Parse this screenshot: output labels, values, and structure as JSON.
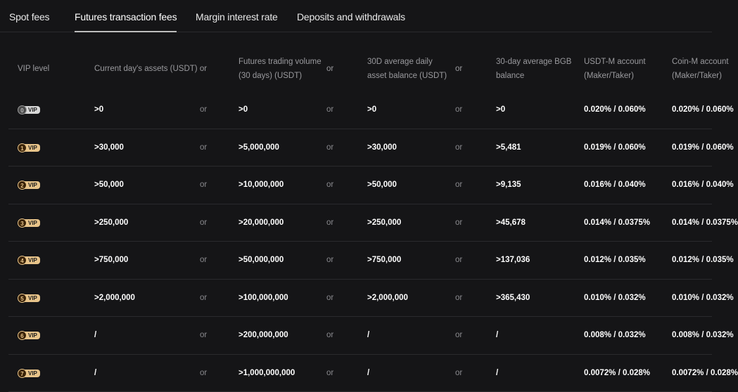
{
  "tabs": [
    {
      "label": "Spot fees"
    },
    {
      "label": "Futures transaction fees",
      "active": true
    },
    {
      "label": "Margin interest rate"
    },
    {
      "label": "Deposits and withdrawals"
    }
  ],
  "headers": {
    "vip": "VIP level",
    "assets": "Current day's assets (USDT) or",
    "volume1": "Futures trading volume",
    "volume2": "(30 days) (USDT)",
    "or": "or",
    "balance1": "30D average daily",
    "balance2": "asset balance (USDT)",
    "bgb1": "30-day average BGB",
    "bgb2": "balance",
    "usdtm1": "USDT-M account",
    "usdtm2": "(Maker/Taker)",
    "coinm1": "Coin-M account",
    "coinm2": "(Maker/Taker)"
  },
  "colors": {
    "vip0": "#8a8a8a",
    "vipGold": "#e8c48a",
    "background": "#151517"
  },
  "rows": [
    {
      "level": "0",
      "vip": "VIP",
      "assets": ">0",
      "or": "or",
      "volume": ">0",
      "balance": ">0",
      "bgb": ">0",
      "usdtm": "0.020% / 0.060%",
      "coinm": "0.020% / 0.060%"
    },
    {
      "level": "1",
      "vip": "VIP",
      "assets": ">30,000",
      "or": "or",
      "volume": ">5,000,000",
      "balance": ">30,000",
      "bgb": ">5,481",
      "usdtm": "0.019% / 0.060%",
      "coinm": "0.019% / 0.060%"
    },
    {
      "level": "2",
      "vip": "VIP",
      "assets": ">50,000",
      "or": "or",
      "volume": ">10,000,000",
      "balance": ">50,000",
      "bgb": ">9,135",
      "usdtm": "0.016% / 0.040%",
      "coinm": "0.016% / 0.040%"
    },
    {
      "level": "3",
      "vip": "VIP",
      "assets": ">250,000",
      "or": "or",
      "volume": ">20,000,000",
      "balance": ">250,000",
      "bgb": ">45,678",
      "usdtm": "0.014% / 0.0375%",
      "coinm": "0.014% / 0.0375%"
    },
    {
      "level": "4",
      "vip": "VIP",
      "assets": ">750,000",
      "or": "or",
      "volume": ">50,000,000",
      "balance": ">750,000",
      "bgb": ">137,036",
      "usdtm": "0.012% / 0.035%",
      "coinm": "0.012% / 0.035%"
    },
    {
      "level": "5",
      "vip": "VIP",
      "assets": ">2,000,000",
      "or": "or",
      "volume": ">100,000,000",
      "balance": ">2,000,000",
      "bgb": ">365,430",
      "usdtm": "0.010% / 0.032%",
      "coinm": "0.010% / 0.032%"
    },
    {
      "level": "6",
      "vip": "VIP",
      "assets": "/",
      "or": "or",
      "volume": ">200,000,000",
      "balance": "/",
      "bgb": "/",
      "usdtm": "0.008% / 0.032%",
      "coinm": "0.008% / 0.032%"
    },
    {
      "level": "7",
      "vip": "VIP",
      "assets": "/",
      "or": "or",
      "volume": ">1,000,000,000",
      "balance": "/",
      "bgb": "/",
      "usdtm": "0.0072% / 0.028%",
      "coinm": "0.0072% / 0.028%"
    }
  ]
}
